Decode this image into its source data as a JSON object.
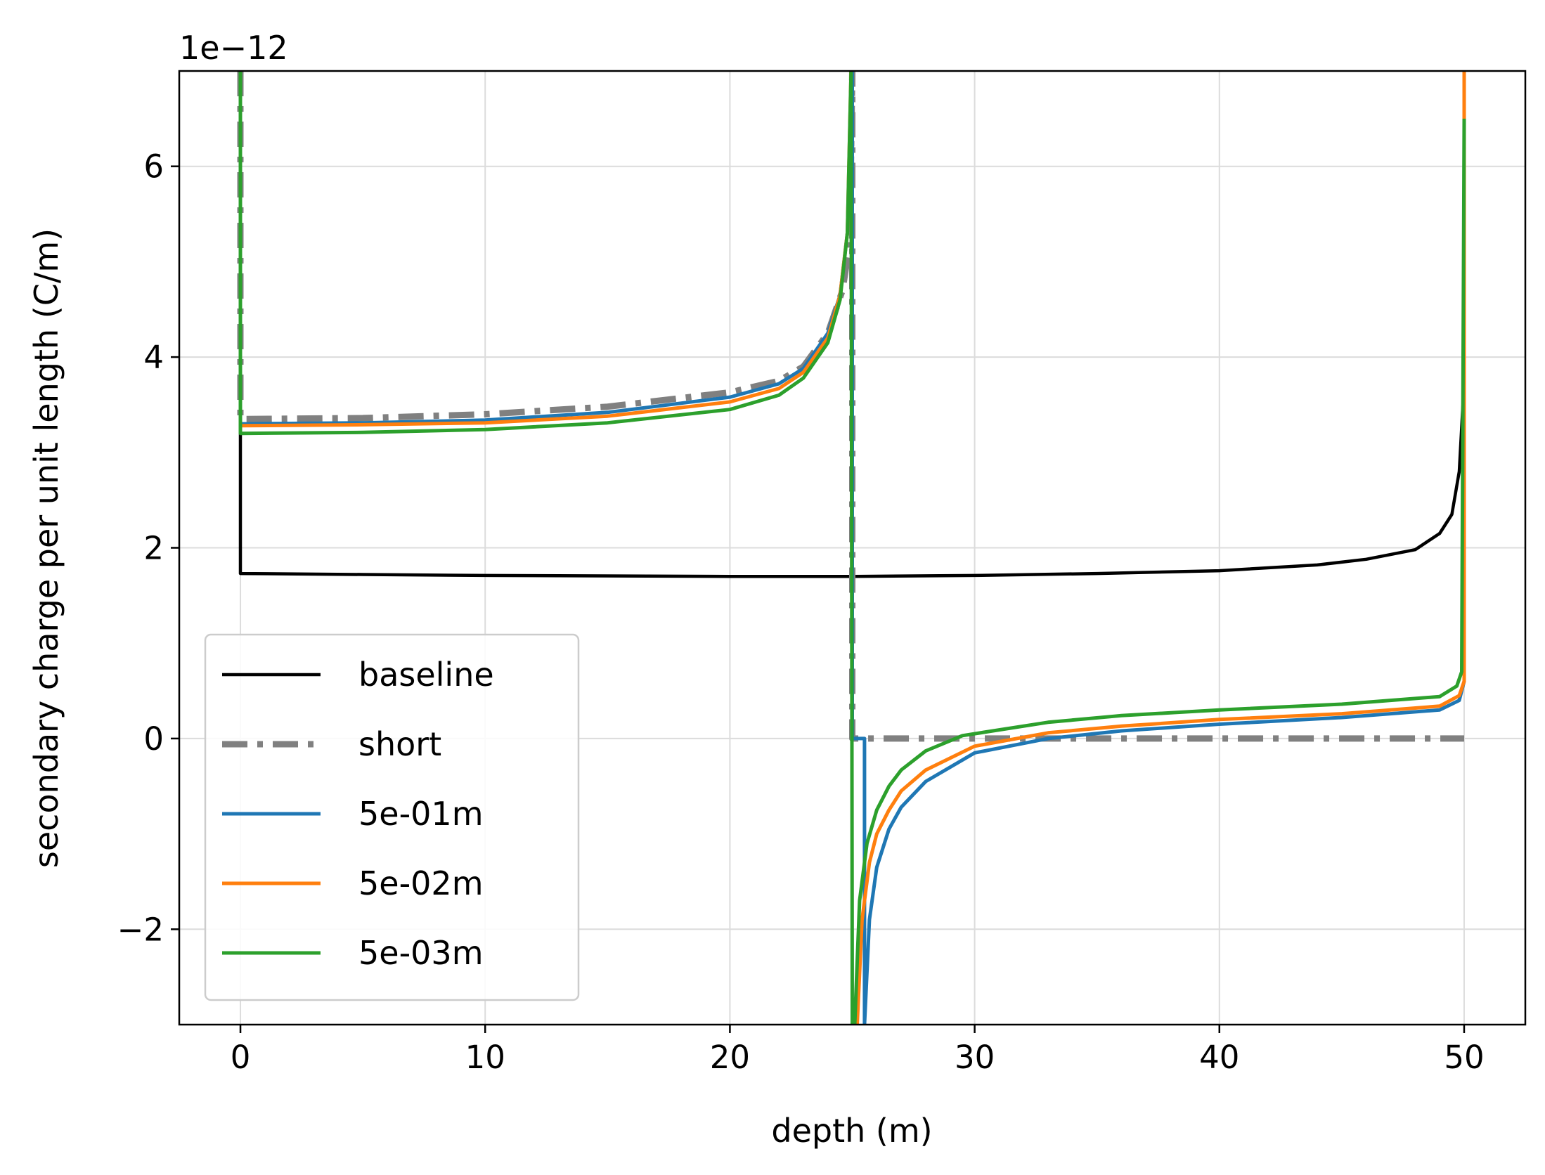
{
  "chart_data": {
    "type": "line",
    "title": "",
    "xlabel": "depth (m)",
    "ylabel": "secondary charge per unit length (C/m)",
    "y_offset_label": "1e−12",
    "xlim": [
      -2.5,
      52.5
    ],
    "ylim": [
      -3,
      7
    ],
    "x_ticks": [
      0,
      10,
      20,
      30,
      40,
      50
    ],
    "x_tick_labels": [
      "0",
      "10",
      "20",
      "30",
      "40",
      "50"
    ],
    "y_ticks": [
      -2,
      0,
      2,
      4,
      6
    ],
    "y_tick_labels": [
      "−2",
      "0",
      "2",
      "4",
      "6"
    ],
    "grid": true,
    "legend_position": "lower-left",
    "series": [
      {
        "name": "baseline",
        "color": "#000000",
        "style": "solid",
        "x": [
          0,
          0,
          5,
          10,
          20,
          25,
          30,
          35,
          40,
          44,
          46,
          48,
          49,
          49.5,
          49.8,
          49.95,
          50,
          50
        ],
        "y": [
          7,
          1.73,
          1.72,
          1.71,
          1.7,
          1.7,
          1.71,
          1.73,
          1.76,
          1.82,
          1.88,
          1.98,
          2.15,
          2.35,
          2.8,
          3.5,
          5,
          7
        ]
      },
      {
        "name": "short",
        "color": "#808080",
        "style": "dashdot",
        "x": [
          0,
          0,
          5,
          10,
          15,
          20,
          22,
          23,
          24,
          24.6,
          24.9,
          25,
          25,
          25,
          50
        ],
        "y": [
          7,
          3.35,
          3.36,
          3.4,
          3.48,
          3.63,
          3.75,
          3.9,
          4.25,
          4.7,
          5.2,
          7,
          7,
          0,
          0
        ]
      },
      {
        "name": "5e-01m",
        "color": "#1f77b4",
        "style": "solid",
        "x": [
          0,
          0,
          5,
          10,
          15,
          20,
          22,
          23,
          24,
          24.5,
          24.8,
          24.95,
          25,
          25,
          25.5,
          25.5,
          25.7,
          26,
          26.5,
          27,
          28,
          30,
          33,
          36,
          40,
          45,
          49,
          49.8,
          50,
          50
        ],
        "y": [
          7,
          3.3,
          3.31,
          3.34,
          3.42,
          3.58,
          3.72,
          3.88,
          4.25,
          4.65,
          5.3,
          6.5,
          7,
          0,
          0,
          -3,
          -1.9,
          -1.35,
          -0.95,
          -0.72,
          -0.45,
          -0.15,
          0.0,
          0.08,
          0.15,
          0.22,
          0.3,
          0.4,
          0.6,
          7
        ]
      },
      {
        "name": "5e-02m",
        "color": "#ff7f0e",
        "style": "solid",
        "x": [
          25.2,
          25.4,
          25.7,
          26,
          26.5,
          27,
          28,
          30,
          33,
          36,
          40,
          45,
          49,
          49.8,
          50,
          50
        ],
        "y": [
          -3,
          -1.9,
          -1.3,
          -1.0,
          -0.75,
          -0.55,
          -0.33,
          -0.08,
          0.06,
          0.13,
          0.2,
          0.26,
          0.34,
          0.45,
          0.6,
          7
        ],
        "x_upper": [
          0,
          0,
          5,
          10,
          15,
          20,
          22,
          23,
          24,
          24.5,
          24.8,
          24.95
        ],
        "y_upper": [
          7,
          3.28,
          3.29,
          3.31,
          3.38,
          3.53,
          3.67,
          3.84,
          4.2,
          4.65,
          5.3,
          7
        ]
      },
      {
        "name": "5e-03m",
        "color": "#2ca02c",
        "style": "solid",
        "x": [
          0,
          0,
          5,
          10,
          15,
          20,
          22,
          23,
          24,
          24.5,
          24.8,
          24.95,
          25,
          25.1,
          25.3,
          25.6,
          26,
          26.5,
          27,
          28,
          29.5,
          33,
          36,
          40,
          45,
          49,
          49.7,
          49.9,
          50,
          50
        ],
        "y": [
          7,
          3.2,
          3.21,
          3.24,
          3.31,
          3.45,
          3.6,
          3.78,
          4.15,
          4.6,
          5.3,
          7,
          -3,
          -3,
          -1.7,
          -1.1,
          -0.75,
          -0.5,
          -0.33,
          -0.13,
          0.03,
          0.17,
          0.24,
          0.3,
          0.36,
          0.44,
          0.55,
          0.7,
          6.5,
          6.5
        ]
      }
    ]
  }
}
